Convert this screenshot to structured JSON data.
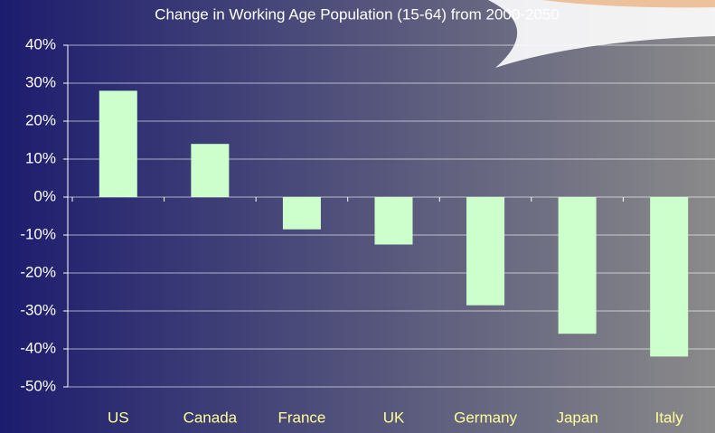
{
  "chart_data": {
    "type": "bar",
    "title": "Change in Working Age Population (15-64) from 2000-2050",
    "categories": [
      "US",
      "Canada",
      "France",
      "UK",
      "Germany",
      "Japan",
      "Italy"
    ],
    "values": [
      28,
      14,
      -8.5,
      -12.5,
      -28.5,
      -36,
      -42
    ],
    "color": "#ccffcc",
    "ylim": [
      -50,
      40
    ],
    "yticks": [
      {
        "value": -50,
        "label": "-50%"
      },
      {
        "value": -40,
        "label": "-40%"
      },
      {
        "value": -30,
        "label": "-30%"
      },
      {
        "value": -20,
        "label": "-20%"
      },
      {
        "value": -10,
        "label": "-10%"
      },
      {
        "value": 0,
        "label": "0%"
      },
      {
        "value": 10,
        "label": "10%"
      },
      {
        "value": 20,
        "label": "20%"
      },
      {
        "value": 30,
        "label": "30%"
      },
      {
        "value": 40,
        "label": "40%"
      }
    ],
    "grid": true
  }
}
